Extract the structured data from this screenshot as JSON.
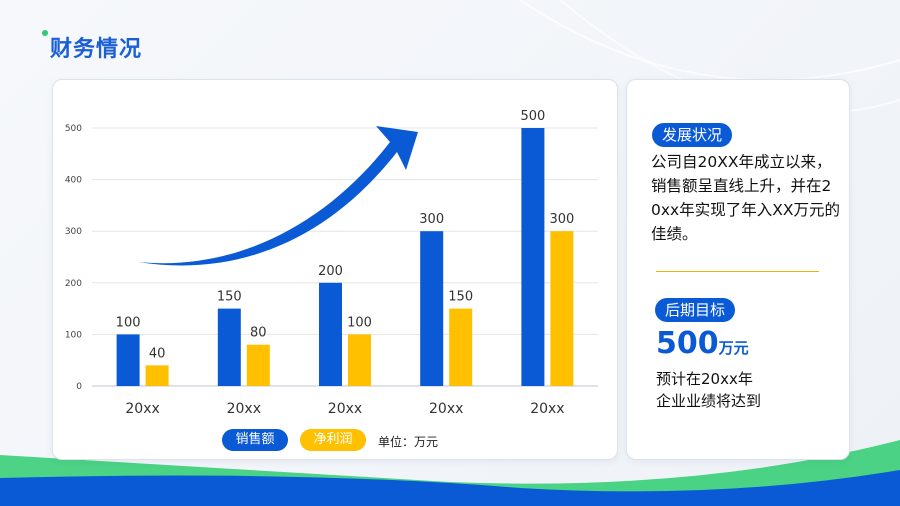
{
  "page": {
    "title": "财务情况"
  },
  "chart_data": {
    "type": "bar",
    "categories": [
      "20xx",
      "20xx",
      "20xx",
      "20xx",
      "20xx"
    ],
    "series": [
      {
        "name": "销售额",
        "values": [
          100,
          150,
          200,
          300,
          500
        ],
        "color": "#0a5ad6"
      },
      {
        "name": "净利润",
        "values": [
          40,
          80,
          100,
          150,
          300
        ],
        "color": "#ffc000"
      }
    ],
    "yticks": [
      0,
      100,
      200,
      300,
      400,
      500
    ],
    "ylim": [
      0,
      500
    ],
    "grid": true,
    "unit_label": "单位：万元",
    "legend_position": "bottom"
  },
  "side": {
    "dev_tag": "发展状况",
    "dev_text": "公司自20XX年成立以来，销售额呈直线上升，并在20xx年实现了年入XX万元的佳绩。",
    "goal_tag": "后期目标",
    "goal_number": "500",
    "goal_unit": "万元",
    "goal_text_line1": "预计在20xx年",
    "goal_text_line2": "企业业绩将达到"
  }
}
